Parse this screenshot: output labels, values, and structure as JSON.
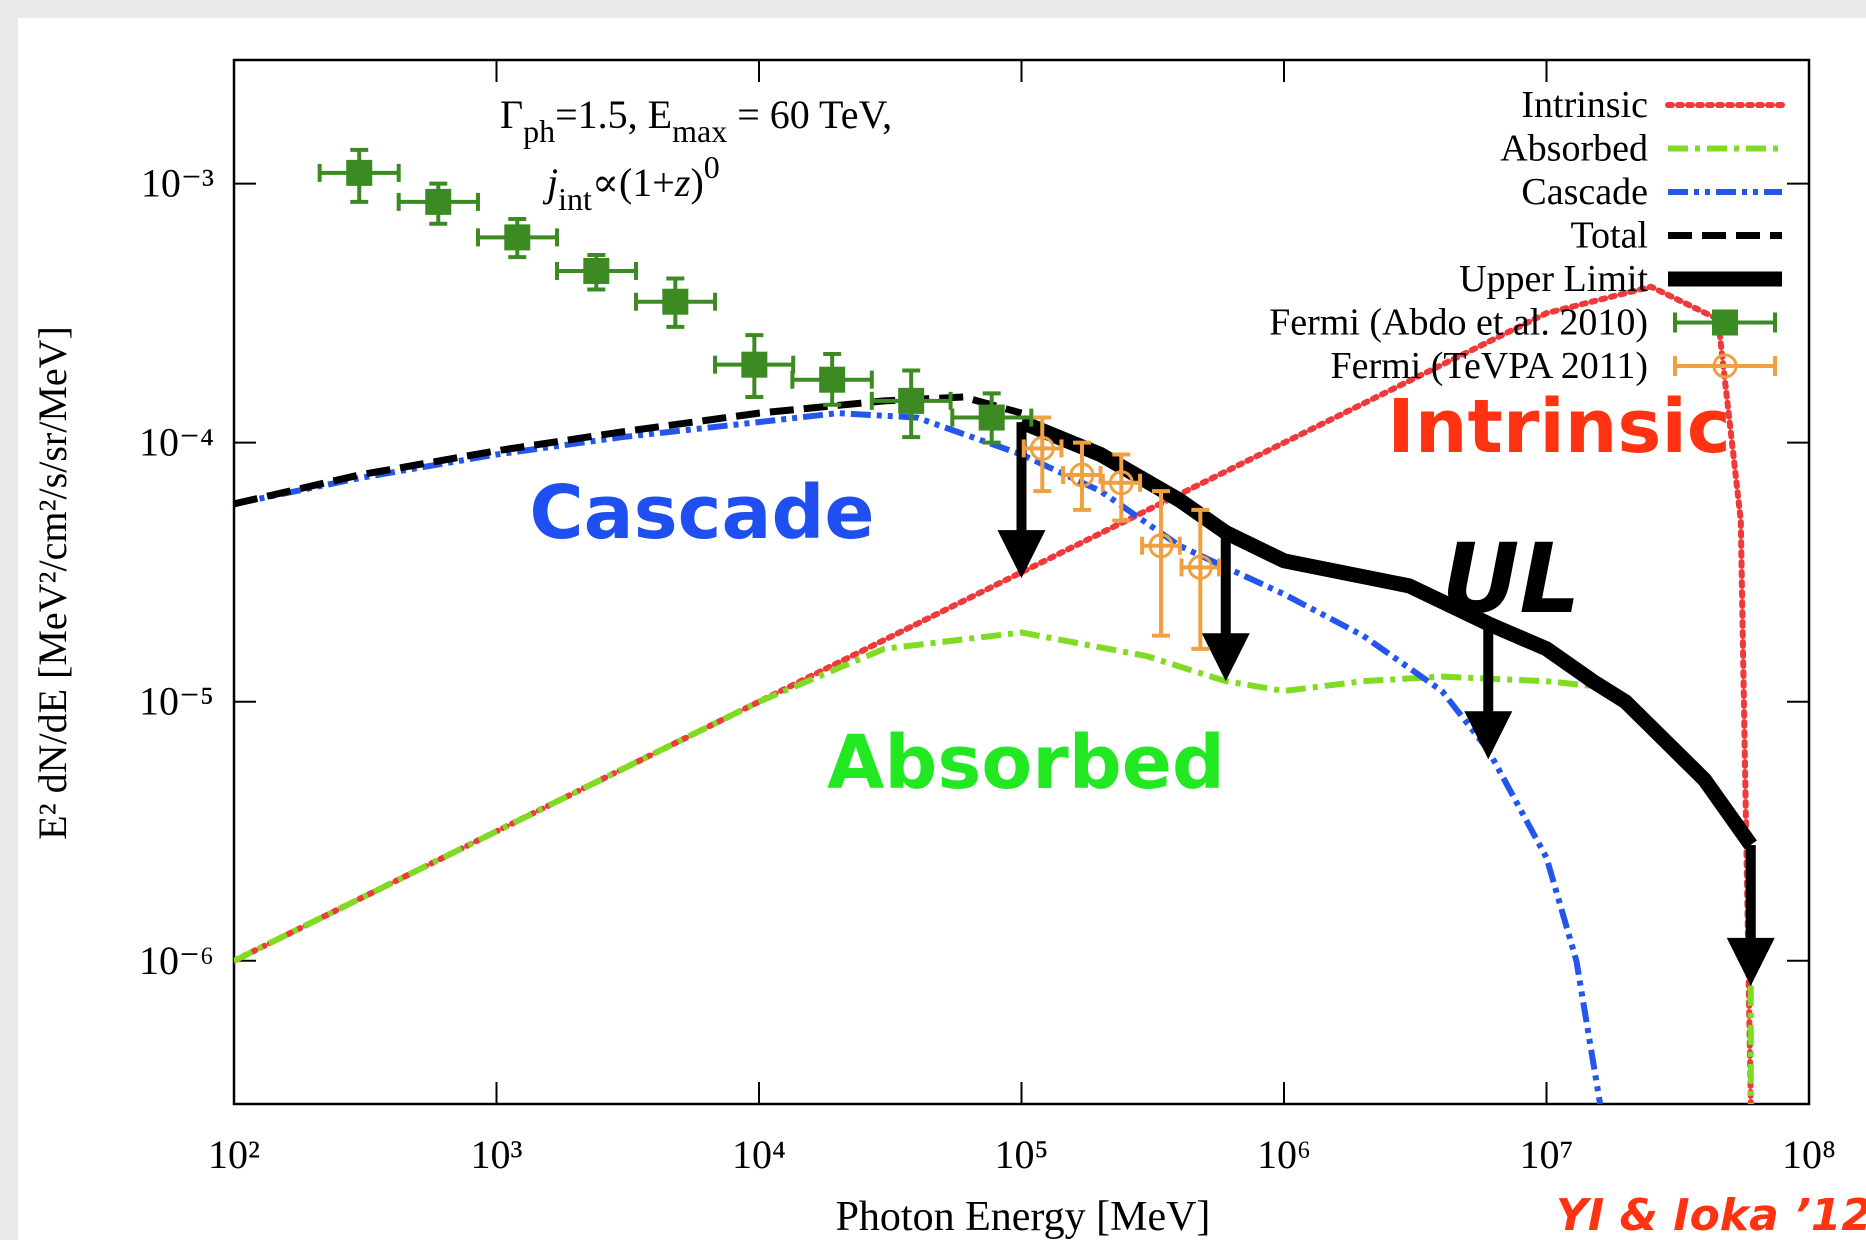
{
  "chart_data": {
    "type": "line",
    "log_x": true,
    "log_y": true,
    "xlabel": "Photon Energy [MeV]",
    "ylabel": "E² dN/dE [MeV²/cm²/s/sr/MeV]",
    "xlim": [
      100,
      100000000
    ],
    "ylim": [
      2.8e-07,
      0.003
    ],
    "xticks": [
      {
        "value": 100,
        "label": "10²"
      },
      {
        "value": 1000,
        "label": "10³"
      },
      {
        "value": 10000,
        "label": "10⁴"
      },
      {
        "value": 100000,
        "label": "10⁵"
      },
      {
        "value": 1000000,
        "label": "10⁶"
      },
      {
        "value": 10000000,
        "label": "10⁷"
      },
      {
        "value": 100000000,
        "label": "10⁸"
      }
    ],
    "yticks": [
      {
        "value": 1e-06,
        "label": "10⁻⁶"
      },
      {
        "value": 1e-05,
        "label": "10⁻⁵"
      },
      {
        "value": 0.0001,
        "label": "10⁻⁴"
      },
      {
        "value": 0.001,
        "label": "10⁻³"
      }
    ],
    "grid": false,
    "legend": "top-right",
    "annotation_lines": [
      [
        {
          "text": "Γ"
        },
        {
          "text": "ph",
          "shift": "sub"
        },
        {
          "text": "=1.5, E"
        },
        {
          "text": "max",
          "shift": "sub"
        },
        {
          "text": " = 60 TeV,"
        }
      ],
      [
        {
          "text": "j",
          "italic": true
        },
        {
          "text": "int",
          "shift": "sub"
        },
        {
          "text": "∝(1+"
        },
        {
          "text": "z",
          "italic": true
        },
        {
          "text": ")"
        },
        {
          "text": "0",
          "shift": "sup"
        }
      ]
    ],
    "overlay_labels": [
      {
        "text": "Cascade",
        "color": "#1f4ff0"
      },
      {
        "text": "Absorbed",
        "color": "#22e822"
      },
      {
        "text": "Intrinsic",
        "color": "#ff3311"
      },
      {
        "text": "UL",
        "color": "#000000"
      }
    ],
    "credit": "YI & Ioka ’12",
    "series": [
      {
        "name": "Intrinsic",
        "color": "#ee3a3a",
        "style": "dotted",
        "x": [
          100,
          1000,
          10000,
          100000,
          1000000,
          10000000,
          25000000,
          45000000,
          55000000,
          60000000
        ],
        "values": [
          1e-06,
          3.16e-06,
          1e-05,
          3.16e-05,
          0.0001,
          0.000316,
          0.0004,
          0.0003,
          5e-05,
          2.8e-07
        ]
      },
      {
        "name": "Absorbed",
        "color": "#7fdc22",
        "style": "dashdot",
        "x": [
          100,
          1000,
          10000,
          30000,
          100000,
          300000,
          600000,
          1000000,
          2000000,
          4000000,
          10000000,
          15000000,
          40000000,
          60000000,
          60000000
        ],
        "values": [
          1e-06,
          3.16e-06,
          1e-05,
          1.6e-05,
          1.85e-05,
          1.5e-05,
          1.2e-05,
          1.1e-05,
          1.2e-05,
          1.25e-05,
          1.2e-05,
          1.15e-05,
          null,
          8e-07,
          2.8e-07
        ]
      },
      {
        "name": "Cascade",
        "color": "#2456ec",
        "style": "dashdotdot",
        "x": [
          100,
          300,
          1000,
          3000,
          10000,
          20000,
          40000,
          100000,
          200000,
          400000,
          600000,
          1000000,
          2000000,
          4000000,
          6000000,
          10000000,
          13000000,
          16000000
        ],
        "values": [
          5.8e-05,
          7.3e-05,
          9e-05,
          0.000105,
          0.00012,
          0.00013,
          0.000125,
          9e-05,
          6.5e-05,
          4e-05,
          3.3e-05,
          2.6e-05,
          1.8e-05,
          1.1e-05,
          6.5e-06,
          2.5e-06,
          1e-06,
          2.8e-07
        ]
      },
      {
        "name": "Total",
        "color": "#000000",
        "style": "dashed",
        "x": [
          100,
          300,
          1000,
          3000,
          10000,
          30000,
          60000,
          100000
        ],
        "values": [
          5.8e-05,
          7.5e-05,
          9.3e-05,
          0.00011,
          0.00013,
          0.000145,
          0.00015,
          0.00013
        ]
      },
      {
        "name": "Upper Limit",
        "color": "#000000",
        "style": "solid",
        "x": [
          100000,
          200000,
          400000,
          600000,
          1000000,
          3000000,
          6000000,
          10000000,
          15000000,
          20000000,
          40000000,
          60000000
        ],
        "values": [
          0.00012,
          9e-05,
          6e-05,
          4.5e-05,
          3.5e-05,
          2.8e-05,
          2e-05,
          1.6e-05,
          1.2e-05,
          1e-05,
          5e-06,
          2.8e-06
        ],
        "arrows": {
          "x": [
            100000,
            600000,
            6000000,
            60000000
          ],
          "from": [
            0.00012,
            4.5e-05,
            2e-05,
            2.8e-06
          ],
          "to": [
            3e-05,
            1.2e-05,
            6e-06,
            8e-07
          ]
        }
      },
      {
        "name": "Fermi (Abdo et al. 2010)",
        "color": "#3c8a22",
        "style": "points",
        "marker": "square",
        "x": [
          300,
          600,
          1200,
          2400,
          4800,
          9600,
          19000,
          38000,
          77000
        ],
        "values": [
          0.0011,
          0.00085,
          0.00062,
          0.00046,
          0.00035,
          0.0002,
          0.000175,
          0.000145,
          0.000125
        ],
        "xlow": [
          212,
          424,
          850,
          1700,
          3400,
          6800,
          13400,
          26900,
          54500
        ],
        "xhigh": [
          424,
          850,
          1700,
          3400,
          6800,
          13500,
          26900,
          53700,
          109000
        ],
        "ylow": [
          0.00085,
          0.0007,
          0.00052,
          0.00039,
          0.00028,
          0.00015,
          0.00014,
          0.000105,
          0.0001
        ],
        "yhigh": [
          0.00135,
          0.001,
          0.00073,
          0.00053,
          0.00043,
          0.00026,
          0.00022,
          0.00019,
          0.000155
        ]
      },
      {
        "name": "Fermi (TeVPA 2011)",
        "color": "#f0a040",
        "style": "points",
        "marker": "circle",
        "x": [
          120000,
          170000,
          240000,
          340000,
          480000
        ],
        "values": [
          9.5e-05,
          7.5e-05,
          7e-05,
          4e-05,
          3.3e-05
        ],
        "xlow": [
          102000,
          144000,
          204000,
          288000,
          407000
        ],
        "xhigh": [
          142000,
          200000,
          283000,
          401000,
          566000
        ],
        "ylow": [
          6.5e-05,
          5.5e-05,
          5e-05,
          1.8e-05,
          1.6e-05
        ],
        "yhigh": [
          0.000125,
          0.0001,
          9e-05,
          6.5e-05,
          5.5e-05
        ]
      }
    ]
  }
}
